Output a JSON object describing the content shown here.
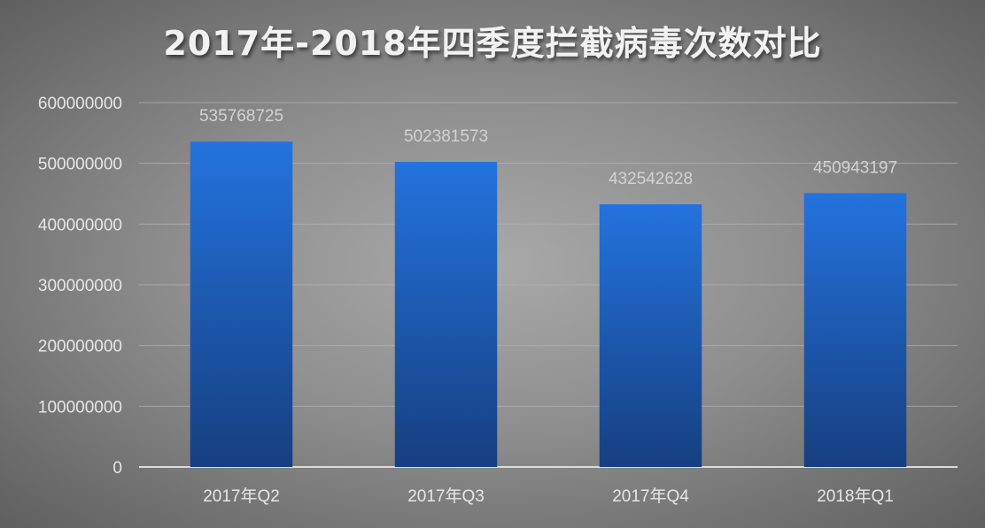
{
  "chart_data": {
    "type": "bar",
    "title": "2017年-2018年四季度拦截病毒次数对比",
    "xlabel": "",
    "ylabel": "",
    "categories": [
      "2017年Q2",
      "2017年Q3",
      "2017年Q4",
      "2018年Q1"
    ],
    "values": [
      535768725,
      502381573,
      432542628,
      450943197
    ],
    "data_labels": [
      "535768725",
      "502381573",
      "432542628",
      "450943197"
    ],
    "ylim": [
      0,
      600000000
    ],
    "yticks": [
      0,
      100000000,
      200000000,
      300000000,
      400000000,
      500000000,
      600000000
    ],
    "ytick_labels": [
      "0",
      "100000000",
      "200000000",
      "300000000",
      "400000000",
      "500000000",
      "600000000"
    ],
    "grid": true,
    "legend": "none",
    "colors": {
      "bar_top": "#2373de",
      "bar_bottom": "#163f80",
      "grid": "#b5b5b5",
      "axis": "#dcdcdc"
    }
  }
}
